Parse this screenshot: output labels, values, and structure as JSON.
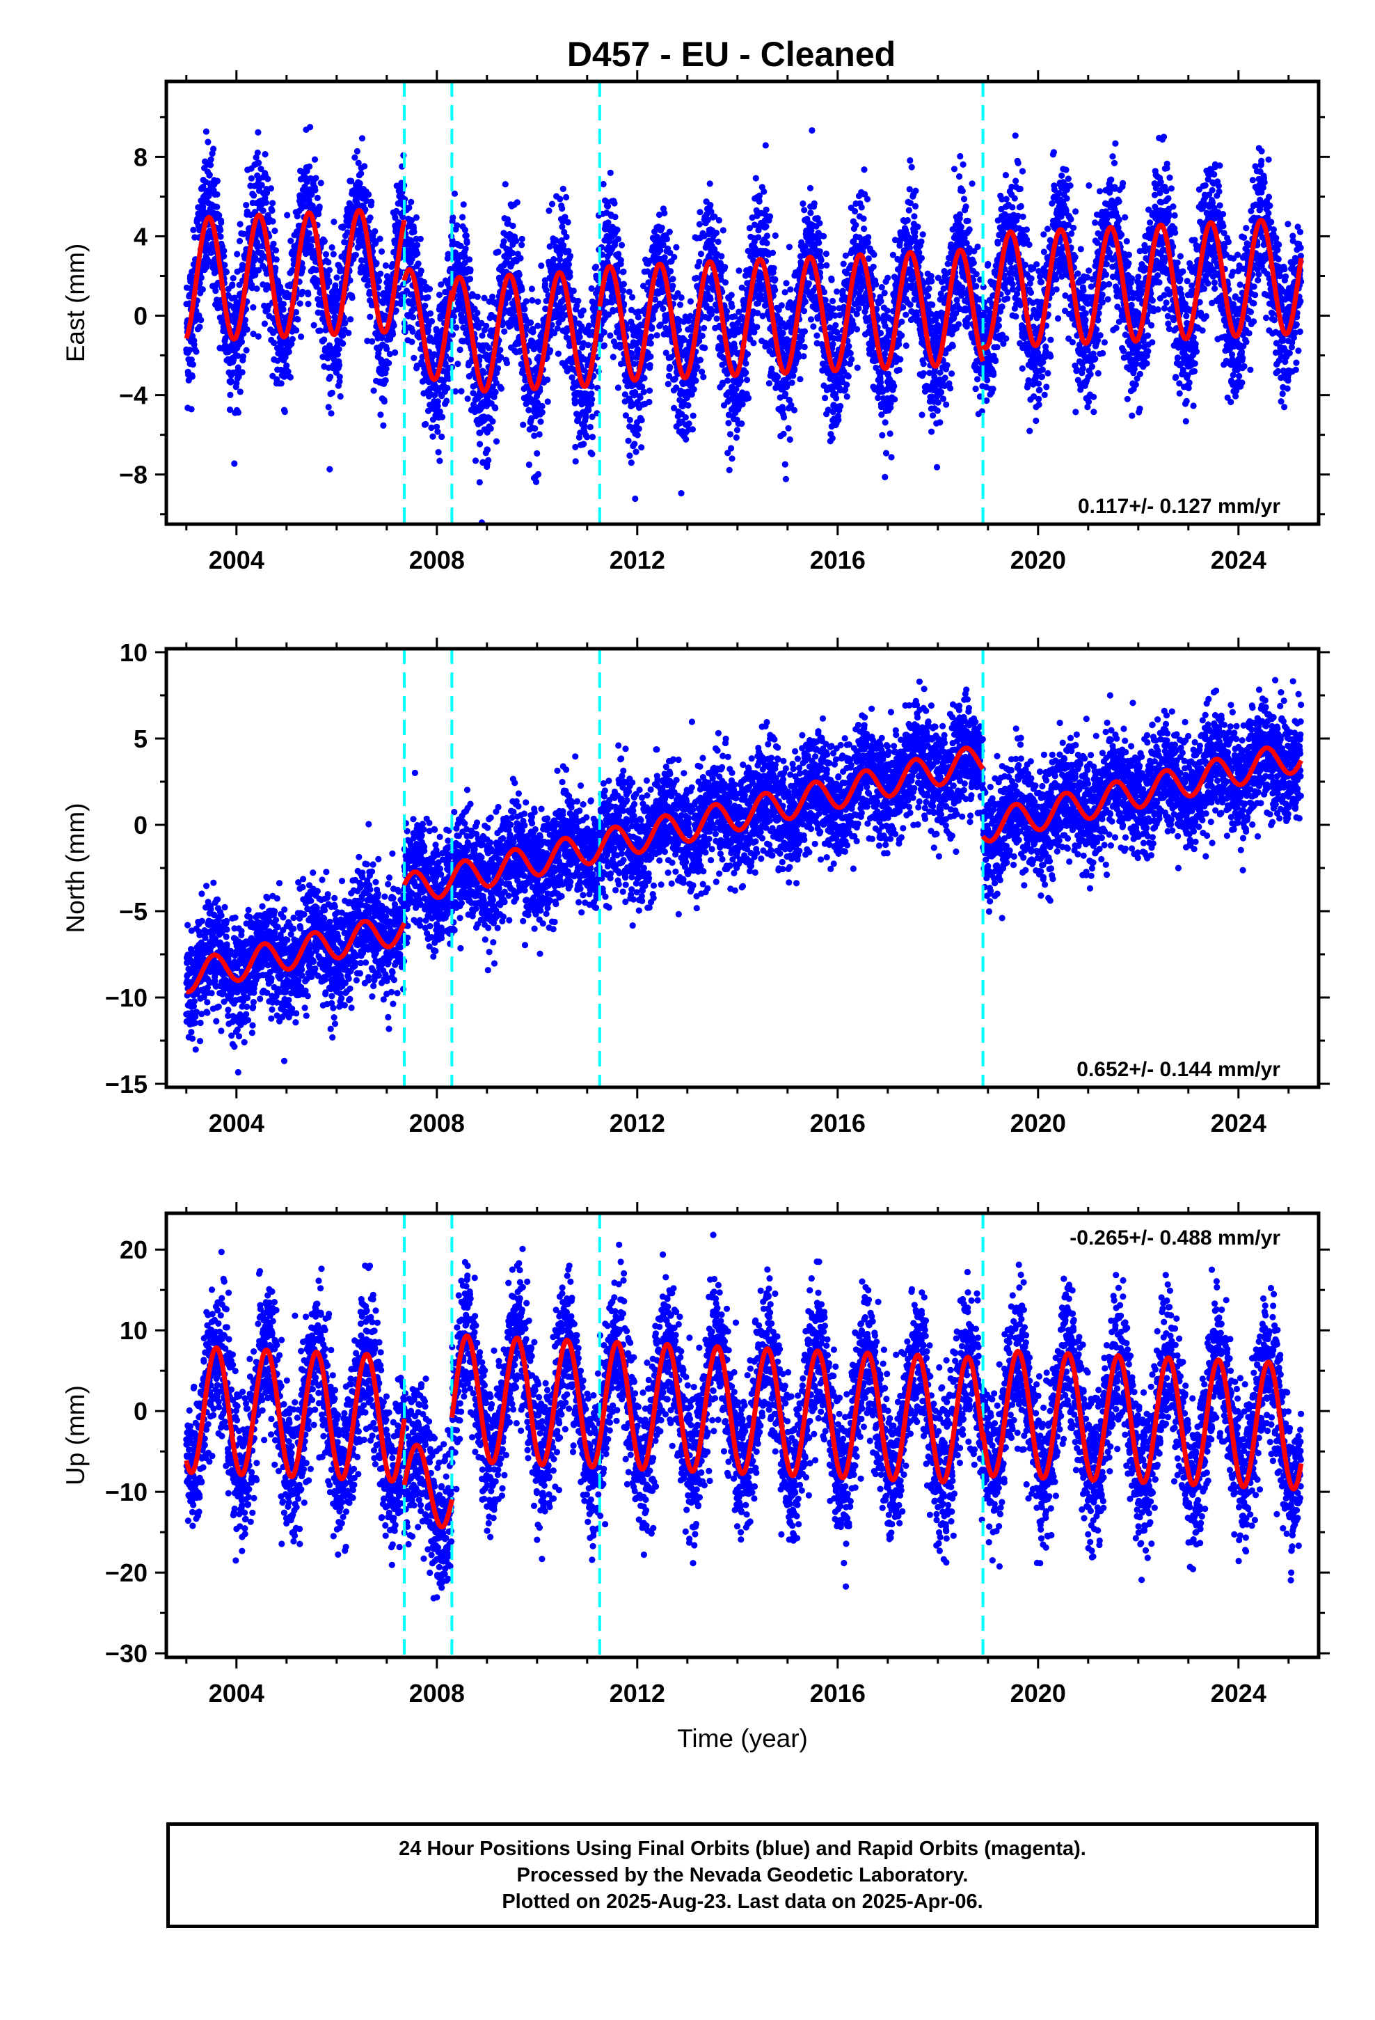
{
  "title": "D457  - EU - Cleaned",
  "xlabel": "Time (year)",
  "footer": {
    "line1": "24 Hour Positions Using Final Orbits (blue) and Rapid Orbits (magenta).",
    "line2": "Processed by the Nevada Geodetic Laboratory.",
    "line3": "Plotted on 2025-Aug-23. Last data on 2025-Apr-06."
  },
  "colors": {
    "points": "#0000ff",
    "model": "#ff0000",
    "breaks": "#00ffff",
    "axis": "#000000"
  },
  "chart_data": [
    {
      "type": "scatter",
      "component": "East",
      "ylabel": "East (mm)",
      "xlim": [
        2002.6,
        2025.6
      ],
      "ylim": [
        -10.5,
        11.8
      ],
      "xticks": [
        2004,
        2008,
        2012,
        2016,
        2020,
        2024
      ],
      "yticks": [
        -8,
        -4,
        0,
        4,
        8
      ],
      "rate_label": "0.117+/- 0.127 mm/yr",
      "rate_position": "bottom-right",
      "breaks": [
        2007.35,
        2008.3,
        2011.25,
        2018.9
      ],
      "model": {
        "segments": [
          {
            "start": 2003.0,
            "end": 2007.35,
            "offset": 1.8,
            "rate": 0.117,
            "amplitude": 3.1,
            "phase_peak": 0.45
          },
          {
            "start": 2007.35,
            "end": 2008.3,
            "offset": -1.0,
            "rate": 0.117,
            "amplitude": 2.8,
            "phase_peak": 0.45
          },
          {
            "start": 2008.3,
            "end": 2011.25,
            "offset": -1.6,
            "rate": 0.117,
            "amplitude": 2.9,
            "phase_peak": 0.45
          },
          {
            "start": 2011.25,
            "end": 2018.9,
            "offset": -1.4,
            "rate": 0.117,
            "amplitude": 2.9,
            "phase_peak": 0.45
          },
          {
            "start": 2018.9,
            "end": 2025.25,
            "offset": -0.6,
            "rate": 0.117,
            "amplitude": 2.9,
            "phase_peak": 0.45
          }
        ]
      },
      "scatter_sigma": 1.8,
      "data_range": [
        2003.0,
        2025.27
      ]
    },
    {
      "type": "scatter",
      "component": "North",
      "ylabel": "North (mm)",
      "xlim": [
        2002.6,
        2025.6
      ],
      "ylim": [
        -15.2,
        10.2
      ],
      "xticks": [
        2004,
        2008,
        2012,
        2016,
        2020,
        2024
      ],
      "yticks": [
        -15,
        -10,
        -5,
        0,
        5,
        10
      ],
      "rate_label": "0.652+/- 0.144 mm/yr",
      "rate_position": "bottom-right",
      "breaks": [
        2007.35,
        2008.3,
        2011.25,
        2018.9
      ],
      "model": {
        "segments": [
          {
            "start": 2003.0,
            "end": 2007.35,
            "offset": -8.8,
            "rate": 0.652,
            "amplitude": 0.9,
            "phase_peak": 0.55
          },
          {
            "start": 2007.35,
            "end": 2008.3,
            "offset": -6.6,
            "rate": 0.652,
            "amplitude": 0.9,
            "phase_peak": 0.55
          },
          {
            "start": 2008.3,
            "end": 2011.25,
            "offset": -6.6,
            "rate": 0.652,
            "amplitude": 0.9,
            "phase_peak": 0.55
          },
          {
            "start": 2011.25,
            "end": 2018.9,
            "offset": -6.6,
            "rate": 0.652,
            "amplitude": 0.9,
            "phase_peak": 0.55
          },
          {
            "start": 2018.9,
            "end": 2025.25,
            "offset": -10.5,
            "rate": 0.652,
            "amplitude": 0.9,
            "phase_peak": 0.55
          }
        ]
      },
      "scatter_sigma": 1.6,
      "data_range": [
        2003.0,
        2025.27
      ]
    },
    {
      "type": "scatter",
      "component": "Up",
      "ylabel": "Up (mm)",
      "xlim": [
        2002.6,
        2025.6
      ],
      "ylim": [
        -30.5,
        24.5
      ],
      "xticks": [
        2004,
        2008,
        2012,
        2016,
        2020,
        2024
      ],
      "yticks": [
        -30,
        -20,
        -10,
        0,
        10,
        20
      ],
      "rate_label": "-0.265+/- 0.488 mm/yr",
      "rate_position": "top-right",
      "breaks": [
        2007.35,
        2008.3,
        2011.25,
        2018.9
      ],
      "model": {
        "segments": [
          {
            "start": 2003.0,
            "end": 2007.35,
            "offset": 0.2,
            "rate": -0.265,
            "amplitude": 7.8,
            "phase_peak": 0.6
          },
          {
            "start": 2007.35,
            "end": 2008.3,
            "offset": -8.0,
            "rate": -0.265,
            "amplitude": 5.0,
            "phase_peak": 0.6
          },
          {
            "start": 2008.3,
            "end": 2011.25,
            "offset": 3.0,
            "rate": -0.265,
            "amplitude": 7.8,
            "phase_peak": 0.6
          },
          {
            "start": 2011.25,
            "end": 2018.9,
            "offset": 3.0,
            "rate": -0.265,
            "amplitude": 7.8,
            "phase_peak": 0.6
          },
          {
            "start": 2018.9,
            "end": 2025.25,
            "offset": 4.0,
            "rate": -0.265,
            "amplitude": 7.8,
            "phase_peak": 0.6
          }
        ]
      },
      "scatter_sigma": 4.5,
      "data_range": [
        2003.0,
        2025.27
      ]
    }
  ]
}
